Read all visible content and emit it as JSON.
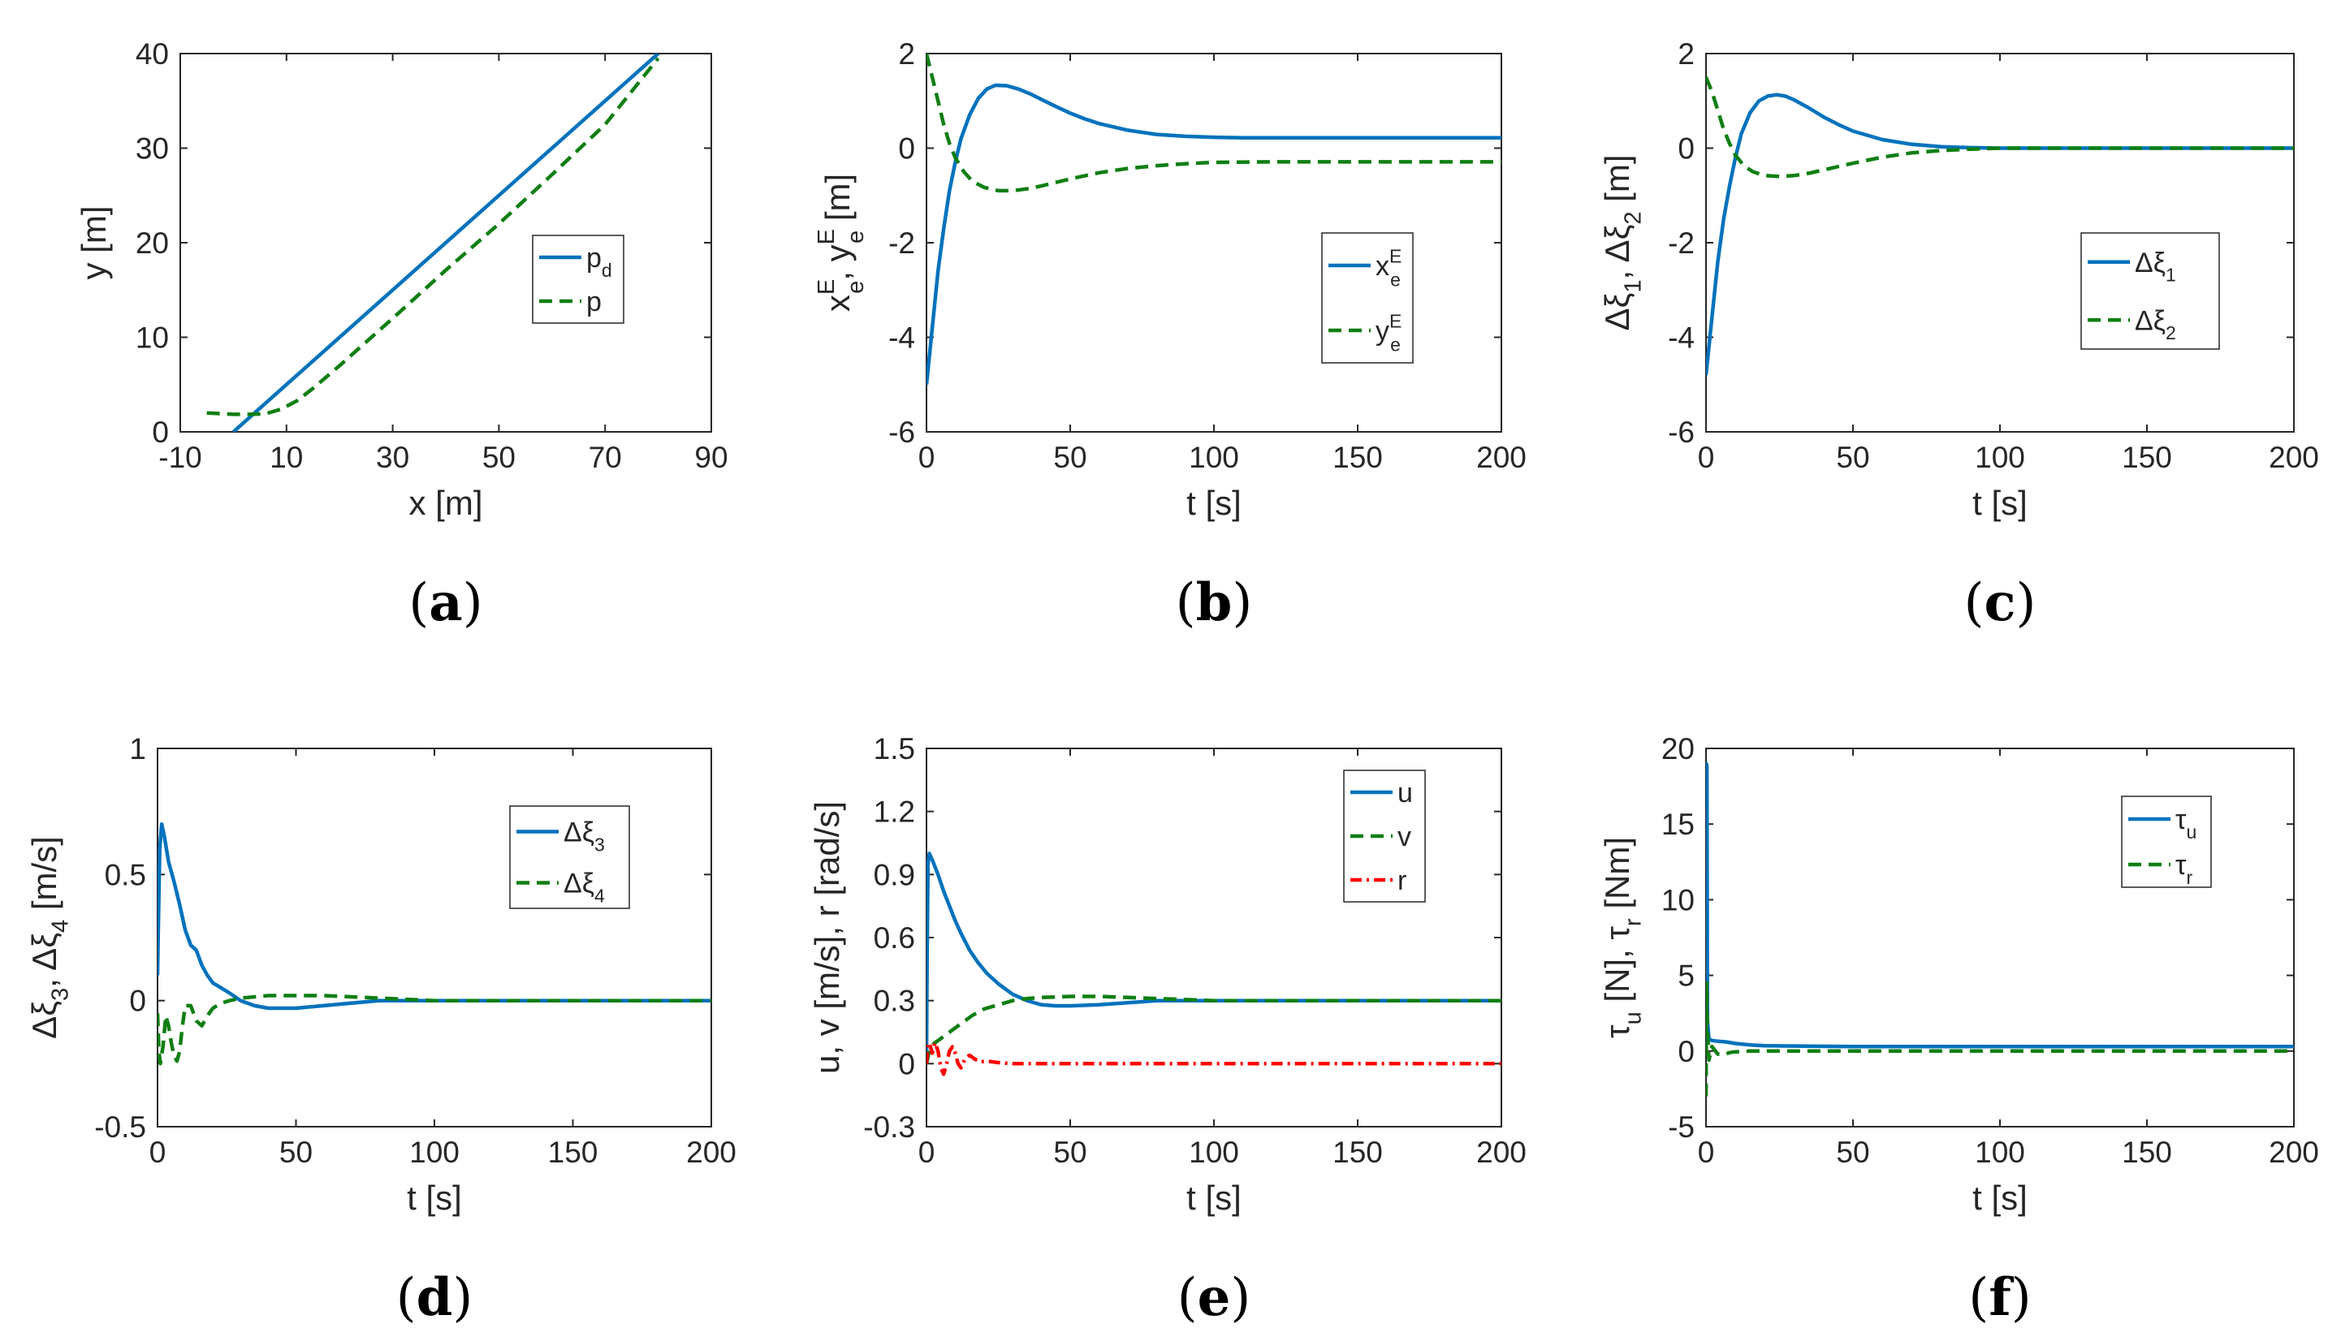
{
  "figure": {
    "colors": {
      "blue": "#0072BD",
      "green": "#0F7F12",
      "red": "#FF0000",
      "axis": "#262626"
    }
  },
  "chart_data": [
    {
      "id": "a",
      "panel_label": "a",
      "type": "line",
      "title": "",
      "xlabel": "x [m]",
      "ylabel": "y [m]",
      "xlim": [
        -10,
        90
      ],
      "ylim": [
        0,
        40
      ],
      "xticks": [
        -10,
        10,
        30,
        50,
        70,
        90
      ],
      "yticks": [
        0,
        10,
        20,
        30,
        40
      ],
      "xtick_labels": [
        "-10",
        "10",
        "30",
        "50",
        "70",
        "90"
      ],
      "ytick_labels": [
        "0",
        "10",
        "20",
        "30",
        "40"
      ],
      "legend_position": "center-right",
      "series": [
        {
          "name": "p",
          "sub": "d",
          "sup": "",
          "color": "#0072BD",
          "dash": "solid",
          "x": [
            0,
            80
          ],
          "y": [
            0,
            40
          ]
        },
        {
          "name": "p",
          "sub": "",
          "sup": "",
          "color": "#0F7F12",
          "dash": "dashed",
          "x": [
            -5,
            0,
            3,
            6,
            9,
            12,
            15,
            20,
            30,
            40,
            50,
            60,
            70,
            80
          ],
          "y": [
            2,
            1.85,
            1.85,
            1.9,
            2.4,
            3.3,
            4.6,
            7.0,
            12.0,
            17.1,
            22.0,
            27.2,
            32.5,
            39.5
          ]
        }
      ]
    },
    {
      "id": "b",
      "panel_label": "b",
      "type": "line",
      "title": "",
      "xlabel": "t [s]",
      "ylabel": "x_e^E, y_e^E [m]",
      "ylabel_parts": [
        {
          "t": "x",
          "sub": "e",
          "sup": "E"
        },
        {
          "t": ", y",
          "sub": "e",
          "sup": "E"
        },
        {
          "t": " [m]",
          "sub": "",
          "sup": ""
        }
      ],
      "xlim": [
        0,
        200
      ],
      "ylim": [
        -6,
        2
      ],
      "xticks": [
        0,
        50,
        100,
        150,
        200
      ],
      "yticks": [
        -6,
        -4,
        -2,
        0,
        2
      ],
      "xtick_labels": [
        "0",
        "50",
        "100",
        "150",
        "200"
      ],
      "ytick_labels": [
        "-6",
        "-4",
        "-2",
        "0",
        "2"
      ],
      "legend_position": "center-right",
      "series": [
        {
          "name": "x",
          "sub": "e",
          "sup": "E",
          "color": "#0072BD",
          "dash": "solid",
          "x": [
            0,
            2,
            4,
            6,
            8,
            10,
            12,
            15,
            18,
            21,
            24,
            28,
            32,
            36,
            40,
            45,
            50,
            55,
            60,
            70,
            80,
            90,
            100,
            110,
            120,
            140,
            160,
            180,
            200
          ],
          "y": [
            -5.0,
            -3.8,
            -2.6,
            -1.7,
            -0.9,
            -0.3,
            0.2,
            0.7,
            1.05,
            1.25,
            1.33,
            1.32,
            1.25,
            1.15,
            1.03,
            0.88,
            0.74,
            0.62,
            0.52,
            0.38,
            0.29,
            0.25,
            0.23,
            0.22,
            0.22,
            0.22,
            0.22,
            0.22,
            0.22
          ]
        },
        {
          "name": "y",
          "sub": "e",
          "sup": "E",
          "color": "#0F7F12",
          "dash": "dashed",
          "x": [
            0,
            2,
            4,
            6,
            8,
            10,
            13,
            16,
            20,
            25,
            30,
            35,
            40,
            50,
            60,
            70,
            80,
            90,
            100,
            120,
            140,
            160,
            180,
            200
          ],
          "y": [
            2.0,
            1.5,
            1.0,
            0.5,
            0.1,
            -0.2,
            -0.5,
            -0.7,
            -0.83,
            -0.9,
            -0.9,
            -0.86,
            -0.8,
            -0.65,
            -0.52,
            -0.43,
            -0.37,
            -0.33,
            -0.3,
            -0.29,
            -0.29,
            -0.29,
            -0.29,
            -0.29
          ]
        }
      ]
    },
    {
      "id": "c",
      "panel_label": "c",
      "type": "line",
      "title": "",
      "xlabel": "t [s]",
      "ylabel": "Δξ₁, Δξ₂ [m]",
      "ylabel_parts": [
        {
          "t": "Δξ",
          "sub": "1",
          "sup": ""
        },
        {
          "t": ", Δξ",
          "sub": "2",
          "sup": ""
        },
        {
          "t": " [m]",
          "sub": "",
          "sup": ""
        }
      ],
      "xlim": [
        0,
        200
      ],
      "ylim": [
        -6,
        2
      ],
      "xticks": [
        0,
        50,
        100,
        150,
        200
      ],
      "yticks": [
        -6,
        -4,
        -2,
        0,
        2
      ],
      "xtick_labels": [
        "0",
        "50",
        "100",
        "150",
        "200"
      ],
      "ytick_labels": [
        "-6",
        "-4",
        "-2",
        "0",
        "2"
      ],
      "legend_position": "center-right",
      "series": [
        {
          "name": "Δξ",
          "sub": "1",
          "sup": "",
          "color": "#0072BD",
          "dash": "solid",
          "x": [
            0,
            2,
            4,
            6,
            8,
            10,
            12,
            15,
            18,
            21,
            24,
            27,
            30,
            35,
            40,
            45,
            50,
            60,
            70,
            80,
            90,
            100,
            110,
            120,
            140,
            160,
            180,
            200
          ],
          "y": [
            -4.8,
            -3.6,
            -2.4,
            -1.5,
            -0.8,
            -0.2,
            0.3,
            0.75,
            1.0,
            1.1,
            1.13,
            1.1,
            1.02,
            0.85,
            0.66,
            0.5,
            0.36,
            0.18,
            0.08,
            0.03,
            0.01,
            0.0,
            0.0,
            0.0,
            0.0,
            0.0,
            0.0,
            0.0
          ]
        },
        {
          "name": "Δξ",
          "sub": "2",
          "sup": "",
          "color": "#0F7F12",
          "dash": "dashed",
          "x": [
            0,
            2,
            4,
            6,
            8,
            10,
            13,
            16,
            20,
            25,
            30,
            35,
            40,
            50,
            60,
            70,
            80,
            90,
            100,
            120,
            140,
            160,
            180,
            200
          ],
          "y": [
            1.5,
            1.2,
            0.8,
            0.4,
            0.1,
            -0.15,
            -0.38,
            -0.5,
            -0.58,
            -0.6,
            -0.58,
            -0.53,
            -0.46,
            -0.32,
            -0.19,
            -0.1,
            -0.05,
            -0.02,
            0.0,
            0.0,
            0.0,
            0.0,
            0.0,
            0.0
          ]
        }
      ]
    },
    {
      "id": "d",
      "panel_label": "d",
      "type": "line",
      "title": "",
      "xlabel": "t [s]",
      "ylabel": "Δξ₃, Δξ₄ [m/s]",
      "ylabel_parts": [
        {
          "t": "Δξ",
          "sub": "3",
          "sup": ""
        },
        {
          "t": ", Δξ",
          "sub": "4",
          "sup": ""
        },
        {
          "t": " [m/s]",
          "sub": "",
          "sup": ""
        }
      ],
      "xlim": [
        0,
        200
      ],
      "ylim": [
        -0.5,
        1
      ],
      "xticks": [
        0,
        50,
        100,
        150,
        200
      ],
      "yticks": [
        -0.5,
        0,
        0.5,
        1
      ],
      "xtick_labels": [
        "0",
        "50",
        "100",
        "150",
        "200"
      ],
      "ytick_labels": [
        "-0.5",
        "0",
        "0.5",
        "1"
      ],
      "legend_position": "top-right",
      "series": [
        {
          "name": "Δξ",
          "sub": "3",
          "sup": "",
          "color": "#0072BD",
          "dash": "solid",
          "x": [
            0,
            0.3,
            0.8,
            1.5,
            2.5,
            4,
            6,
            8,
            10,
            12,
            14,
            16,
            18,
            20,
            23,
            26,
            30,
            35,
            40,
            45,
            50,
            60,
            70,
            80,
            90,
            100,
            110,
            120,
            140,
            160,
            180,
            200
          ],
          "y": [
            0.1,
            0.3,
            0.6,
            0.7,
            0.65,
            0.55,
            0.47,
            0.38,
            0.28,
            0.22,
            0.2,
            0.14,
            0.1,
            0.07,
            0.05,
            0.03,
            0.0,
            -0.02,
            -0.03,
            -0.03,
            -0.03,
            -0.02,
            -0.01,
            0.0,
            0.0,
            0.0,
            0.0,
            0.0,
            0.0,
            0.0,
            0.0,
            0.0
          ]
        },
        {
          "name": "Δξ",
          "sub": "4",
          "sup": "",
          "color": "#0F7F12",
          "dash": "dashed",
          "x": [
            0,
            0.5,
            1,
            2,
            3,
            4,
            5,
            6,
            7,
            8,
            9,
            10,
            12,
            14,
            16,
            18,
            20,
            23,
            26,
            30,
            40,
            50,
            60,
            70,
            80,
            90,
            100,
            110,
            120,
            140,
            160,
            180,
            200
          ],
          "y": [
            -0.05,
            -0.2,
            -0.25,
            -0.18,
            -0.06,
            -0.1,
            -0.17,
            -0.22,
            -0.24,
            -0.2,
            -0.1,
            -0.02,
            -0.02,
            -0.08,
            -0.1,
            -0.06,
            -0.03,
            -0.01,
            0.0,
            0.01,
            0.02,
            0.02,
            0.02,
            0.015,
            0.01,
            0.005,
            0.0,
            0.0,
            0.0,
            0.0,
            0.0,
            0.0,
            0.0
          ]
        }
      ]
    },
    {
      "id": "e",
      "panel_label": "e",
      "type": "line",
      "title": "",
      "xlabel": "t [s]",
      "ylabel": "u, v [m/s], r [rad/s]",
      "ylabel_parts": [
        {
          "t": "u, v [m/s], r [rad/s]",
          "sub": "",
          "sup": ""
        }
      ],
      "xlim": [
        0,
        200
      ],
      "ylim": [
        -0.3,
        1.5
      ],
      "xticks": [
        0,
        50,
        100,
        150,
        200
      ],
      "yticks": [
        -0.3,
        0,
        0.3,
        0.6,
        0.9,
        1.2,
        1.5
      ],
      "xtick_labels": [
        "0",
        "50",
        "100",
        "150",
        "200"
      ],
      "ytick_labels": [
        "-0.3",
        "0",
        "0.3",
        "0.6",
        "0.9",
        "1.2",
        "1.5"
      ],
      "legend_position": "top-right",
      "series": [
        {
          "name": "u",
          "sub": "",
          "sup": "",
          "color": "#0072BD",
          "dash": "solid",
          "x": [
            0,
            0.2,
            0.5,
            1,
            2,
            4,
            6,
            8,
            10,
            12,
            15,
            18,
            21,
            25,
            30,
            35,
            40,
            45,
            50,
            60,
            70,
            80,
            90,
            100,
            110,
            120,
            140,
            160,
            180,
            200
          ],
          "y": [
            0.05,
            0.5,
            0.95,
            1.0,
            0.97,
            0.9,
            0.82,
            0.75,
            0.68,
            0.62,
            0.54,
            0.48,
            0.43,
            0.38,
            0.33,
            0.3,
            0.28,
            0.275,
            0.275,
            0.28,
            0.29,
            0.3,
            0.3,
            0.3,
            0.3,
            0.3,
            0.3,
            0.3,
            0.3,
            0.3
          ]
        },
        {
          "name": "v",
          "sub": "",
          "sup": "",
          "color": "#0F7F12",
          "dash": "dashed",
          "x": [
            0,
            1,
            2,
            4,
            6,
            8,
            10,
            13,
            16,
            20,
            25,
            30,
            35,
            40,
            50,
            60,
            70,
            80,
            90,
            100,
            120,
            140,
            160,
            180,
            200
          ],
          "y": [
            0.0,
            0.06,
            0.09,
            0.11,
            0.13,
            0.15,
            0.17,
            0.2,
            0.23,
            0.26,
            0.28,
            0.3,
            0.31,
            0.315,
            0.32,
            0.32,
            0.315,
            0.31,
            0.305,
            0.3,
            0.3,
            0.3,
            0.3,
            0.3,
            0.3
          ]
        },
        {
          "name": "r",
          "sub": "",
          "sup": "",
          "color": "#FF0000",
          "dash": "dashdot",
          "x": [
            0,
            0.5,
            1,
            2,
            3,
            4,
            5,
            6,
            7,
            8,
            9,
            10,
            11,
            12,
            13,
            14,
            15,
            16,
            17,
            18,
            19,
            20,
            22,
            25,
            30,
            40,
            50,
            60,
            80,
            100,
            120,
            140,
            160,
            180,
            200
          ],
          "y": [
            0.0,
            0.08,
            0.1,
            0.05,
            0.1,
            0.06,
            -0.02,
            -0.05,
            0.0,
            0.06,
            0.08,
            0.05,
            0.0,
            -0.02,
            0.01,
            0.03,
            0.04,
            0.03,
            0.02,
            0.02,
            0.01,
            0.01,
            0.01,
            0.005,
            0.0,
            0.0,
            0.0,
            0.0,
            0.0,
            0.0,
            0.0,
            0.0,
            0.0,
            0.0,
            0.0
          ]
        }
      ]
    },
    {
      "id": "f",
      "panel_label": "f",
      "type": "line",
      "title": "",
      "xlabel": "t [s]",
      "ylabel": "τ_u [N], τ_r [Nm]",
      "ylabel_parts": [
        {
          "t": "τ",
          "sub": "u",
          "sup": ""
        },
        {
          "t": " [N], τ",
          "sub": "r",
          "sup": ""
        },
        {
          "t": " [Nm]",
          "sub": "",
          "sup": ""
        }
      ],
      "xlim": [
        0,
        200
      ],
      "ylim": [
        -5,
        20
      ],
      "xticks": [
        0,
        50,
        100,
        150,
        200
      ],
      "yticks": [
        -5,
        0,
        5,
        10,
        15,
        20
      ],
      "xtick_labels": [
        "0",
        "50",
        "100",
        "150",
        "200"
      ],
      "ytick_labels": [
        "-5",
        "0",
        "5",
        "10",
        "15",
        "20"
      ],
      "legend_position": "top-right",
      "series": [
        {
          "name": "τ",
          "sub": "u",
          "sup": "",
          "color": "#0072BD",
          "dash": "solid",
          "x": [
            0,
            0.1,
            0.3,
            0.5,
            1,
            2,
            4,
            7,
            10,
            15,
            20,
            30,
            50,
            80,
            100,
            150,
            200
          ],
          "y": [
            0.0,
            19.0,
            18.8,
            2.0,
            0.8,
            0.7,
            0.65,
            0.6,
            0.5,
            0.4,
            0.35,
            0.33,
            0.3,
            0.3,
            0.3,
            0.3,
            0.3
          ]
        },
        {
          "name": "τ",
          "sub": "r",
          "sup": "",
          "color": "#0F7F12",
          "dash": "dashed",
          "x": [
            0,
            0.2,
            0.5,
            1,
            2,
            4,
            6,
            8,
            10,
            15,
            20,
            30,
            50,
            100,
            150,
            200
          ],
          "y": [
            -3.0,
            4.5,
            1.5,
            -0.6,
            0.3,
            -0.2,
            -0.25,
            -0.1,
            -0.05,
            0.0,
            0.0,
            0.0,
            0.0,
            0.0,
            0.0,
            0.0
          ]
        }
      ]
    }
  ]
}
